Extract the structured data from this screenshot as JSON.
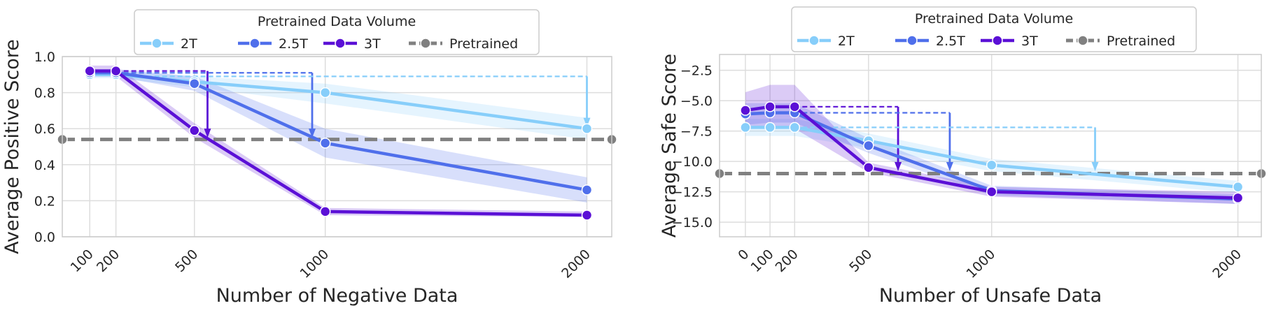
{
  "colors": {
    "2T": "#87CEFA",
    "2.5T": "#4F6FEB",
    "3T": "#5B10D6",
    "pretrained": "#808080",
    "grid": "#DDDDDD",
    "frame": "#CCCCCC"
  },
  "chart_data": [
    {
      "type": "line",
      "title": "",
      "xlabel": "Number of Negative Data",
      "ylabel": "Average Positive Score",
      "xticks": [
        100,
        200,
        500,
        1000,
        2000
      ],
      "xtick_labels": [
        "100",
        "200",
        "500",
        "1000",
        "2000"
      ],
      "xlim": [
        -5,
        2095
      ],
      "yticks": [
        0.0,
        0.2,
        0.4,
        0.6,
        0.8,
        1.0
      ],
      "ytick_labels": [
        "0.0",
        "0.2",
        "0.4",
        "0.6",
        "0.8",
        "1.0"
      ],
      "ylim": [
        0.0,
        1.0
      ],
      "grid": true,
      "legend": {
        "title": "Pretrained Data Volume",
        "placement": "top-center",
        "entries": [
          "2T",
          "2.5T",
          "3T",
          "Pretrained"
        ]
      },
      "series": [
        {
          "name": "2T",
          "color_key": "2T",
          "x": [
            100,
            200,
            500,
            1000,
            2000
          ],
          "values": [
            0.9,
            0.9,
            0.86,
            0.8,
            0.6
          ],
          "lower": [
            0.88,
            0.88,
            0.83,
            0.74,
            0.54
          ],
          "upper": [
            0.92,
            0.92,
            0.89,
            0.85,
            0.66
          ]
        },
        {
          "name": "2.5T",
          "color_key": "2.5T",
          "x": [
            100,
            200,
            500,
            1000,
            2000
          ],
          "values": [
            0.91,
            0.91,
            0.85,
            0.52,
            0.26
          ],
          "lower": [
            0.89,
            0.89,
            0.81,
            0.44,
            0.19
          ],
          "upper": [
            0.93,
            0.93,
            0.89,
            0.6,
            0.33
          ]
        },
        {
          "name": "3T",
          "color_key": "3T",
          "x": [
            100,
            200,
            500,
            1000,
            2000
          ],
          "values": [
            0.92,
            0.92,
            0.59,
            0.14,
            0.12
          ],
          "lower": [
            0.89,
            0.89,
            0.55,
            0.12,
            0.11
          ],
          "upper": [
            0.95,
            0.95,
            0.63,
            0.16,
            0.14
          ]
        }
      ],
      "reference_line": {
        "name": "Pretrained",
        "value": 0.54
      },
      "annotations": [
        {
          "series": "3T",
          "x_from": 200,
          "x_to": 550,
          "y_from": 0.92,
          "y_to": 0.55
        },
        {
          "series": "2.5T",
          "x_from": 200,
          "x_to": 950,
          "y_from": 0.91,
          "y_to": 0.55
        },
        {
          "series": "2T",
          "x_from": 200,
          "x_to": 2000,
          "y_from": 0.89,
          "y_to": 0.61
        }
      ]
    },
    {
      "type": "line",
      "title": "",
      "xlabel": "Number of Unsafe Data",
      "ylabel": "Average Safe Score",
      "xticks": [
        0,
        100,
        200,
        500,
        1000,
        2000
      ],
      "xtick_labels": [
        "0",
        "100",
        "200",
        "500",
        "1000",
        "2000"
      ],
      "xlim": [
        -105,
        2095
      ],
      "yticks": [
        -15.0,
        -12.5,
        -10.0,
        -7.5,
        -5.0,
        -2.5
      ],
      "ytick_labels": [
        "−15.0",
        "−12.5",
        "−10.0",
        "−7.5",
        "−5.0",
        "−2.5"
      ],
      "ylim": [
        -16.2,
        -1.2
      ],
      "grid": true,
      "legend": {
        "title": "Pretrained Data Volume",
        "placement": "top-center",
        "entries": [
          "2T",
          "2.5T",
          "3T",
          "Pretrained"
        ]
      },
      "series": [
        {
          "name": "2T",
          "color_key": "2T",
          "x": [
            0,
            100,
            200,
            500,
            1000,
            2000
          ],
          "values": [
            -7.2,
            -7.2,
            -7.2,
            -8.3,
            -10.3,
            -12.1
          ],
          "lower": [
            -7.9,
            -7.9,
            -7.9,
            -8.9,
            -10.8,
            -12.6
          ],
          "upper": [
            -6.5,
            -6.5,
            -6.5,
            -7.7,
            -9.8,
            -11.6
          ]
        },
        {
          "name": "2.5T",
          "color_key": "2.5T",
          "x": [
            0,
            100,
            200,
            500,
            1000,
            2000
          ],
          "values": [
            -6.1,
            -6.0,
            -6.0,
            -8.7,
            -12.4,
            -13.1
          ],
          "lower": [
            -7.0,
            -6.8,
            -6.8,
            -9.3,
            -12.8,
            -13.5
          ],
          "upper": [
            -5.2,
            -5.2,
            -5.2,
            -8.1,
            -12.0,
            -12.7
          ]
        },
        {
          "name": "3T",
          "color_key": "3T",
          "x": [
            0,
            100,
            200,
            500,
            1000,
            2000
          ],
          "values": [
            -5.8,
            -5.5,
            -5.5,
            -10.5,
            -12.5,
            -13.0
          ],
          "lower": [
            -7.3,
            -7.3,
            -7.3,
            -10.9,
            -12.9,
            -13.5
          ],
          "upper": [
            -4.3,
            -3.7,
            -3.7,
            -10.1,
            -12.1,
            -12.5
          ]
        }
      ],
      "reference_line": {
        "name": "Pretrained",
        "value": -11.0
      },
      "annotations": [
        {
          "series": "3T",
          "x_from": 200,
          "x_to": 620,
          "y_from": -5.5,
          "y_to": -10.8
        },
        {
          "series": "2.5T",
          "x_from": 200,
          "x_to": 830,
          "y_from": -6.0,
          "y_to": -10.8
        },
        {
          "series": "2T",
          "x_from": 200,
          "x_to": 1420,
          "y_from": -7.2,
          "y_to": -10.8
        }
      ]
    }
  ]
}
